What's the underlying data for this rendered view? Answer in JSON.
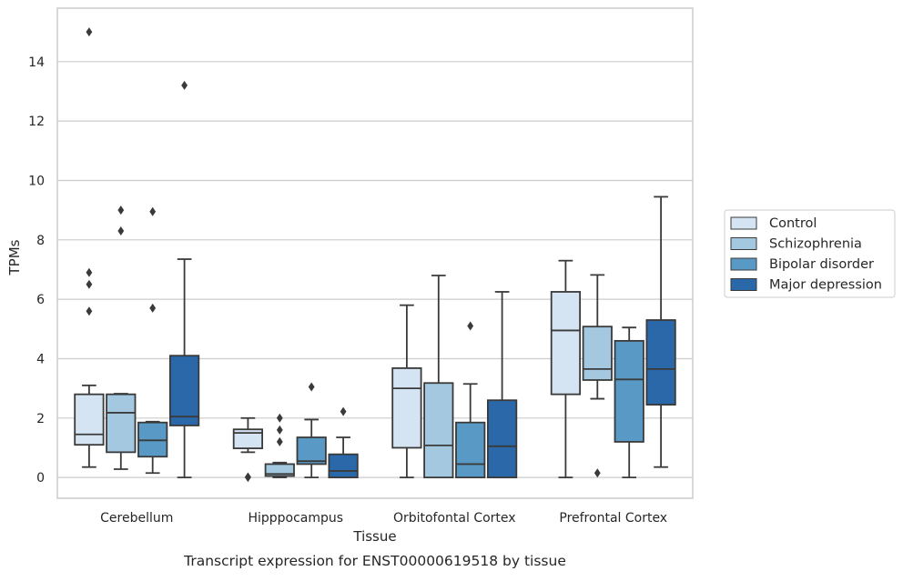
{
  "chart_data": {
    "type": "box",
    "caption": "Transcript expression for ENST00000619518 by tissue",
    "xlabel": "Tissue",
    "ylabel": "TPMs",
    "ylim": [
      -0.7,
      15.8
    ],
    "yticks": [
      0,
      2,
      4,
      6,
      8,
      10,
      12,
      14
    ],
    "grid": "horizontal",
    "legend_position": "right",
    "categories": [
      "Cerebellum",
      "Hipppocampus",
      "Orbitofontal Cortex",
      "Prefrontal Cortex"
    ],
    "series": [
      {
        "name": "Control",
        "color": "#d4e4f2",
        "boxes": [
          {
            "whislo": 0.35,
            "q1": 1.1,
            "med": 1.45,
            "q3": 2.8,
            "whishi": 3.1,
            "fliers": [
              5.6,
              6.5,
              6.9,
              15.0
            ]
          },
          {
            "whislo": 0.85,
            "q1": 0.98,
            "med": 1.5,
            "q3": 1.62,
            "whishi": 2.0,
            "fliers": [
              0.0,
              0.02
            ]
          },
          {
            "whislo": 0.0,
            "q1": 1.0,
            "med": 3.0,
            "q3": 3.68,
            "whishi": 5.8,
            "fliers": []
          },
          {
            "whislo": 0.0,
            "q1": 2.8,
            "med": 4.95,
            "q3": 6.25,
            "whishi": 7.3,
            "fliers": []
          }
        ]
      },
      {
        "name": "Schizophrenia",
        "color": "#a3c8e0",
        "boxes": [
          {
            "whislo": 0.28,
            "q1": 0.85,
            "med": 2.18,
            "q3": 2.8,
            "whishi": 2.82,
            "fliers": [
              8.3,
              9.0
            ]
          },
          {
            "whislo": 0.0,
            "q1": 0.05,
            "med": 0.12,
            "q3": 0.45,
            "whishi": 0.5,
            "fliers": [
              1.2,
              1.6,
              2.0
            ]
          },
          {
            "whislo": 0.0,
            "q1": 0.0,
            "med": 1.08,
            "q3": 3.18,
            "whishi": 6.8,
            "fliers": []
          },
          {
            "whislo": 2.65,
            "q1": 3.28,
            "med": 3.65,
            "q3": 5.08,
            "whishi": 6.82,
            "fliers": [
              0.15
            ]
          }
        ]
      },
      {
        "name": "Bipolar disorder",
        "color": "#5899c5",
        "boxes": [
          {
            "whislo": 0.15,
            "q1": 0.7,
            "med": 1.25,
            "q3": 1.85,
            "whishi": 1.88,
            "fliers": [
              5.7,
              8.95
            ]
          },
          {
            "whislo": 0.0,
            "q1": 0.45,
            "med": 0.55,
            "q3": 1.35,
            "whishi": 1.95,
            "fliers": [
              3.05
            ]
          },
          {
            "whislo": 0.0,
            "q1": 0.0,
            "med": 0.45,
            "q3": 1.85,
            "whishi": 3.15,
            "fliers": [
              5.1
            ]
          },
          {
            "whislo": 0.0,
            "q1": 1.2,
            "med": 3.3,
            "q3": 4.6,
            "whishi": 5.05,
            "fliers": []
          }
        ]
      },
      {
        "name": "Major depression",
        "color": "#2a68aa",
        "boxes": [
          {
            "whislo": 0.0,
            "q1": 1.75,
            "med": 2.05,
            "q3": 4.1,
            "whishi": 7.35,
            "fliers": [
              13.2
            ]
          },
          {
            "whislo": 0.0,
            "q1": 0.0,
            "med": 0.22,
            "q3": 0.78,
            "whishi": 1.35,
            "fliers": [
              2.22
            ]
          },
          {
            "whislo": 0.0,
            "q1": 0.0,
            "med": 1.05,
            "q3": 2.6,
            "whishi": 6.25,
            "fliers": []
          },
          {
            "whislo": 0.35,
            "q1": 2.45,
            "med": 3.65,
            "q3": 5.3,
            "whishi": 9.45,
            "fliers": []
          }
        ]
      }
    ]
  }
}
